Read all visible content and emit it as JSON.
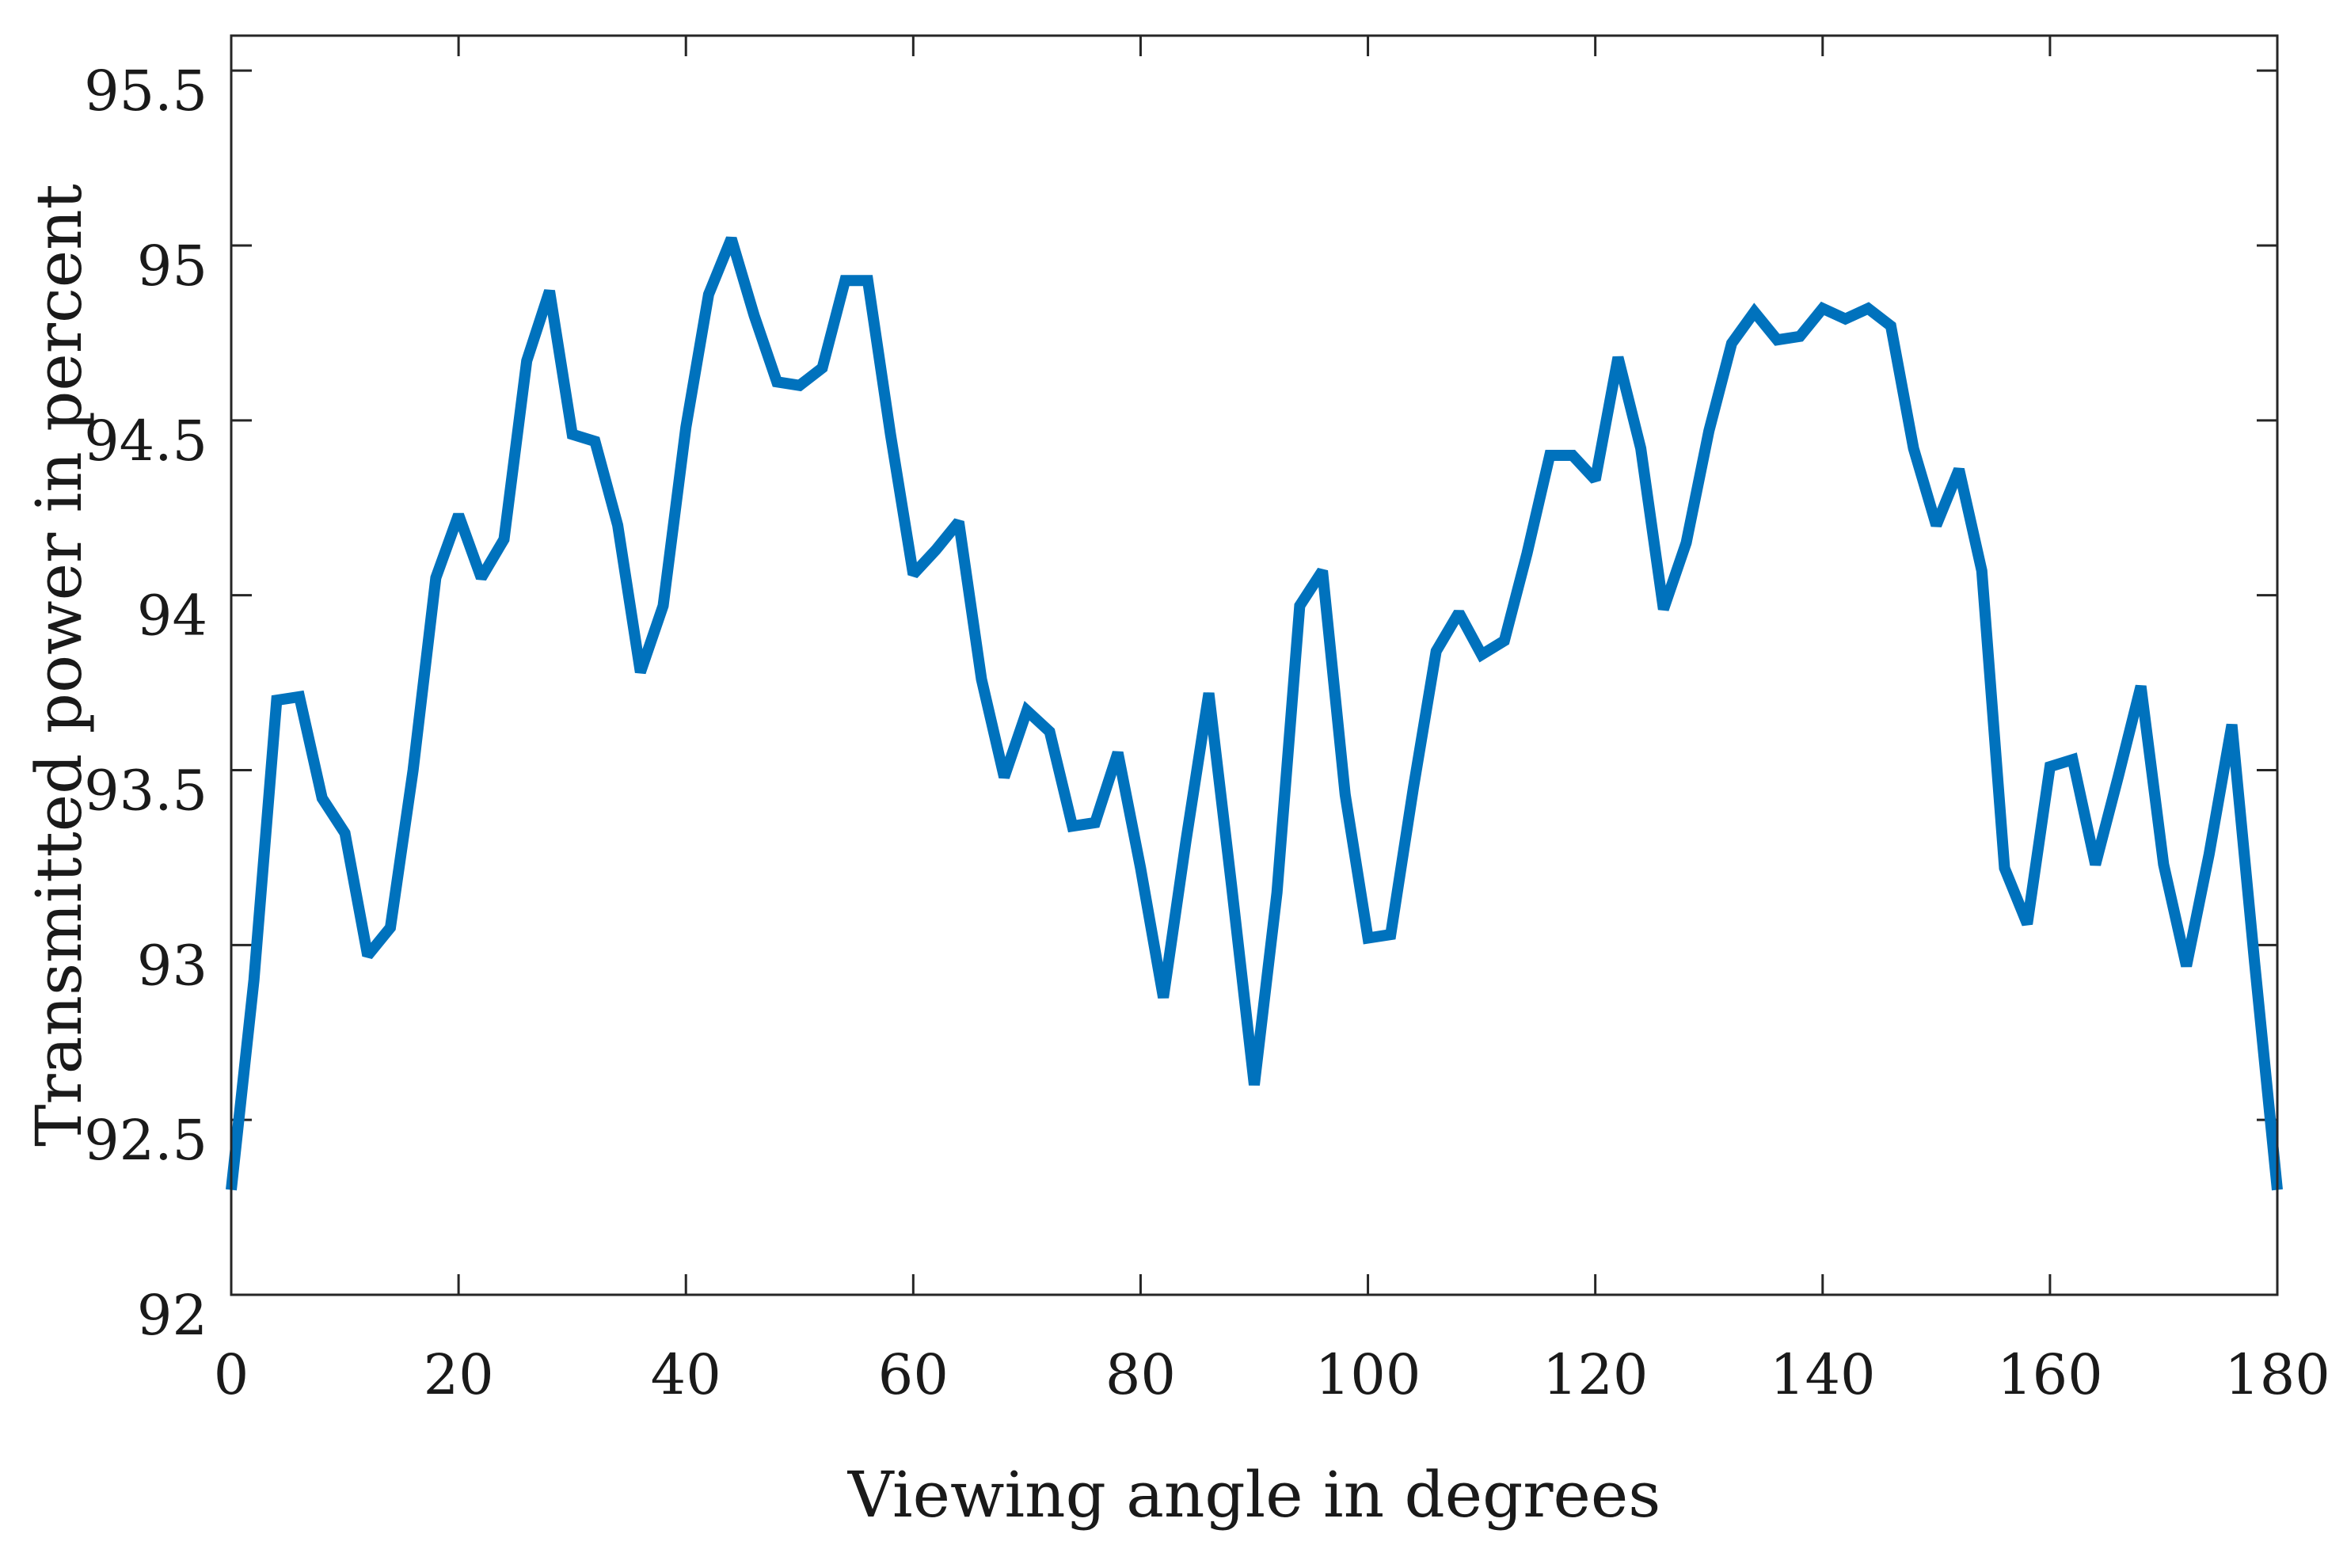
{
  "chart_data": {
    "type": "line",
    "title": "",
    "xlabel": "Viewing angle in degrees",
    "ylabel": "Transmitted power in percent",
    "xlim": [
      0,
      180
    ],
    "ylim": [
      92,
      95.6
    ],
    "xticks": [
      0,
      20,
      40,
      60,
      80,
      100,
      120,
      140,
      160,
      180
    ],
    "xtick_labels": [
      "0",
      "20",
      "40",
      "60",
      "80",
      "100",
      "120",
      "140",
      "160",
      "180"
    ],
    "yticks": [
      92,
      92.5,
      93,
      93.5,
      94,
      94.5,
      95,
      95.5
    ],
    "ytick_labels": [
      "92",
      "92.5",
      "93",
      "93.5",
      "94",
      "94.5",
      "95",
      "95.5"
    ],
    "grid": false,
    "legend": "none",
    "series_color": "#0072BD",
    "series": [
      {
        "x": [
          0,
          2,
          4,
          6,
          8,
          10,
          12,
          14,
          16,
          18,
          20,
          22,
          24,
          26,
          28,
          30,
          32,
          34,
          36,
          38,
          40,
          42,
          44,
          46,
          48,
          50,
          52,
          54,
          56,
          58,
          60,
          62,
          64,
          66,
          68,
          70,
          72,
          74,
          76,
          78,
          80,
          82,
          84,
          86,
          88,
          90,
          92,
          94,
          96,
          98,
          100,
          102,
          104,
          106,
          108,
          110,
          112,
          114,
          116,
          118,
          120,
          122,
          124,
          126,
          128,
          130,
          132,
          134,
          136,
          138,
          140,
          142,
          144,
          146,
          148,
          150,
          152,
          154,
          156,
          158,
          160,
          162,
          164,
          166,
          168,
          170,
          172,
          174,
          176,
          178,
          180
        ],
        "y": [
          92.3,
          92.9,
          93.7,
          93.71,
          93.42,
          93.32,
          92.97,
          93.05,
          93.5,
          94.05,
          94.23,
          94.05,
          94.16,
          94.67,
          94.87,
          94.46,
          94.44,
          94.2,
          93.78,
          93.97,
          94.48,
          94.86,
          95.02,
          94.8,
          94.61,
          94.6,
          94.65,
          94.9,
          94.9,
          94.46,
          94.06,
          94.13,
          94.21,
          93.76,
          93.48,
          93.67,
          93.61,
          93.34,
          93.35,
          93.55,
          93.22,
          92.85,
          93.3,
          93.72,
          93.17,
          92.6,
          93.15,
          93.97,
          94.07,
          93.43,
          93.02,
          93.03,
          93.45,
          93.84,
          93.95,
          93.83,
          93.87,
          94.12,
          94.4,
          94.4,
          94.33,
          94.68,
          94.42,
          93.96,
          94.15,
          94.47,
          94.72,
          94.81,
          94.73,
          94.74,
          94.82,
          94.79,
          94.82,
          94.77,
          94.42,
          94.2,
          94.36,
          94.07,
          93.22,
          93.06,
          93.51,
          93.53,
          93.23,
          93.48,
          93.74,
          93.23,
          92.94,
          93.26,
          93.63,
          92.95,
          92.3
        ]
      }
    ]
  }
}
